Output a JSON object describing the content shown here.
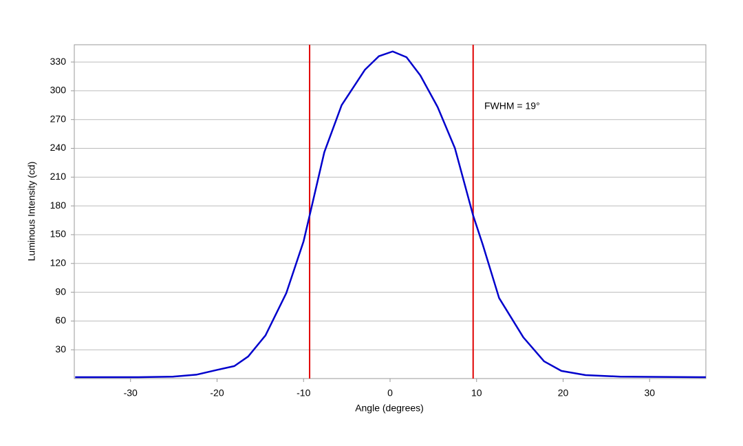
{
  "chart_data": {
    "type": "line",
    "x_label": "Angle (degrees)",
    "y_label": "Luminous Intensity (cd)",
    "annotation": "FWHM = 19°",
    "x": [
      -36.4,
      -29.1,
      -25.1,
      -22.4,
      -20,
      -18,
      -16.4,
      -14.4,
      -12,
      -10,
      -9.3,
      -7.6,
      -5.6,
      -2.9,
      -1.3,
      0.3,
      1.9,
      3.5,
      5.5,
      7.5,
      9.6,
      10.7,
      12.6,
      15.4,
      17.8,
      19.8,
      22.6,
      26.6,
      36.5
    ],
    "series": [
      {
        "color": "#0000cc",
        "values": [
          1.4,
          1.4,
          2,
          4,
          9,
          13,
          23,
          45,
          89,
          143,
          170,
          236,
          285,
          322,
          336,
          341,
          335,
          316,
          283,
          240,
          170,
          140,
          84,
          43,
          18,
          8,
          3.6,
          2,
          1.4
        ]
      }
    ],
    "vlines": [
      -9.3,
      9.6
    ],
    "vline_color": "#e00000",
    "xlim": [
      -36.5,
      36.5
    ],
    "xticks": [
      -30,
      -20,
      -10,
      0,
      10,
      20,
      30
    ],
    "ylim": [
      0,
      348
    ],
    "yticks": [
      30,
      60,
      90,
      120,
      150,
      180,
      210,
      240,
      270,
      300,
      330
    ],
    "grid": true
  }
}
